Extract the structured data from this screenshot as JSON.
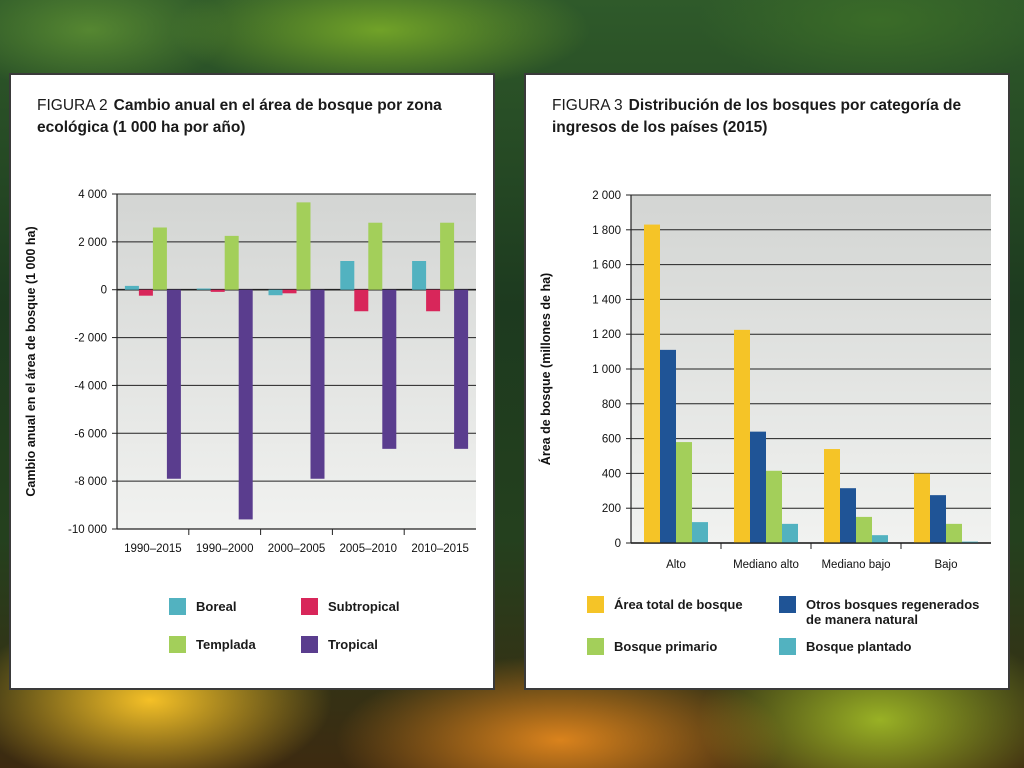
{
  "figure2": {
    "fig_num": "FIGURA 2",
    "title": "Cambio anual en el área de bosque por zona ecológica (1 000 ha por año)"
  },
  "figure3": {
    "fig_num": "FIGURA 3",
    "title": "Distribución de los bosques por categoría de ingresos de los países (2015)"
  },
  "chart_data": [
    {
      "type": "bar",
      "title": "Cambio anual en el área de bosque por zona ecológica (1 000 ha por año)",
      "xlabel": "",
      "ylabel": "Cambio anual en el área de bosque (1 000 ha)",
      "categories": [
        "1990–2015",
        "1990–2000",
        "2000–2005",
        "2005–2010",
        "2010–2015"
      ],
      "ylim": [
        -10000,
        4000
      ],
      "yticks": [
        4000,
        2000,
        0,
        -2000,
        -4000,
        -6000,
        -8000,
        -10000
      ],
      "ytick_labels": [
        "4 000",
        "2 000",
        "0",
        "-2 000",
        "-4 000",
        "-6 000",
        "-8 000",
        "-10 000"
      ],
      "grid": true,
      "legend_position": "bottom",
      "series": [
        {
          "name": "Boreal",
          "color": "#52b2c0",
          "values": [
            160,
            50,
            -230,
            1200,
            1200
          ]
        },
        {
          "name": "Subtropical",
          "color": "#d8265a",
          "values": [
            -250,
            -90,
            -150,
            -900,
            -900
          ]
        },
        {
          "name": "Templada",
          "color": "#a3cf5a",
          "values": [
            2600,
            2250,
            3650,
            2800,
            2800
          ]
        },
        {
          "name": "Tropical",
          "color": "#5a3d8e",
          "values": [
            -7900,
            -9600,
            -7900,
            -6650,
            -6650
          ]
        }
      ]
    },
    {
      "type": "bar",
      "title": "Distribución de los bosques por categoría de ingresos de los países (2015)",
      "xlabel": "",
      "ylabel": "Área de bosque (millones de ha)",
      "categories": [
        "Alto",
        "Mediano alto",
        "Mediano bajo",
        "Bajo"
      ],
      "ylim": [
        0,
        2000
      ],
      "yticks": [
        0,
        200,
        400,
        600,
        800,
        1000,
        1200,
        1400,
        1600,
        1800,
        2000
      ],
      "ytick_labels": [
        "0",
        "200",
        "400",
        "600",
        "800",
        "1 000",
        "1 200",
        "1 400",
        "1 600",
        "1 800",
        "2 000"
      ],
      "grid": true,
      "legend_position": "bottom",
      "series": [
        {
          "name": "Área total de bosque",
          "color": "#f5c427",
          "values": [
            1830,
            1225,
            540,
            400
          ]
        },
        {
          "name": "Otros bosques regenerados de manera natural",
          "color": "#1f5496",
          "values": [
            1110,
            640,
            315,
            275
          ]
        },
        {
          "name": "Bosque primario",
          "color": "#a3cf5a",
          "values": [
            580,
            415,
            150,
            110
          ]
        },
        {
          "name": "Bosque plantado",
          "color": "#52b2c0",
          "values": [
            120,
            110,
            45,
            8
          ]
        }
      ]
    }
  ]
}
